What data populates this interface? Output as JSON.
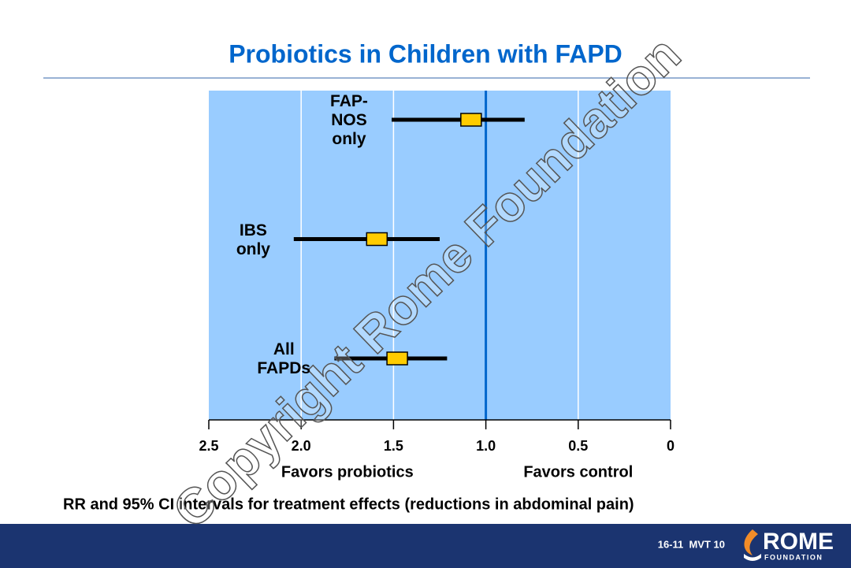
{
  "chart_data": {
    "type": "forest",
    "title": "Probiotics in Children with FAPD",
    "categories": [
      "FAP-NOS only",
      "IBS only",
      "All FAPDs"
    ],
    "values": [
      1.08,
      1.59,
      1.48
    ],
    "lower": [
      0.79,
      1.25,
      1.21
    ],
    "upper": [
      1.51,
      2.04,
      1.82
    ],
    "xlim": [
      2.5,
      0
    ],
    "xticks": [
      2.5,
      {
        "value": 2,
        "label": "2.0"
      },
      1.5,
      {
        "value": 1,
        "label": "1.0"
      },
      0.5,
      0
    ],
    "reference_line": 1,
    "grid": true,
    "marker_color": "#ffcc00",
    "plot_color": "#99ccff",
    "annotations": [
      "Favors probiotics",
      "Favors control"
    ],
    "caption": "RR and 95% CI intervals for treatment effects (reductions in abdominal pain)"
  },
  "footer": {
    "slide_id": "16-11  MVT 10",
    "logo": "ROME",
    "logo_sub": "FOUNDATION"
  },
  "watermark": "Copyright Rome Foundation"
}
